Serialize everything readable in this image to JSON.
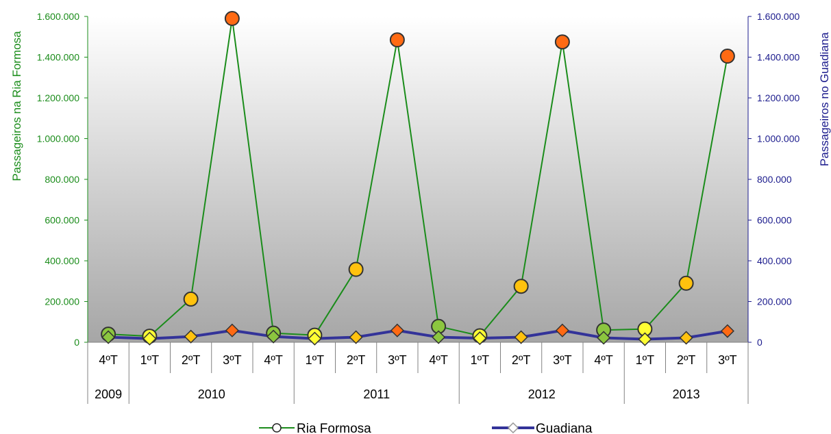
{
  "chart_data": {
    "type": "line",
    "title": "",
    "ylabel_left": "Passageiros na Ria Formosa",
    "ylabel_right": "Passageiros no Guadiana",
    "ylim_left": [
      0,
      1600000
    ],
    "ylim_right": [
      0,
      1600000
    ],
    "yticks": [
      "0",
      "200.000",
      "400.000",
      "600.000",
      "800.000",
      "1.000.000",
      "1.200.000",
      "1.400.000",
      "1.600.000"
    ],
    "categories": [
      "4ºT",
      "1ºT",
      "2ºT",
      "3ºT",
      "4ºT",
      "1ºT",
      "2ºT",
      "3ºT",
      "4ºT",
      "1ºT",
      "2ºT",
      "3ºT",
      "4ºT",
      "1ºT",
      "2ºT",
      "3ºT"
    ],
    "years": [
      {
        "label": "2009",
        "count": 1
      },
      {
        "label": "2010",
        "count": 4
      },
      {
        "label": "2011",
        "count": 4
      },
      {
        "label": "2012",
        "count": 4
      },
      {
        "label": "2013",
        "count": 3
      }
    ],
    "series": [
      {
        "name": "Ria Formosa",
        "axis": "left",
        "line_color": "#1a8c1a",
        "values": [
          40000,
          30000,
          212000,
          1590000,
          45000,
          35000,
          358000,
          1485000,
          78000,
          32000,
          275000,
          1475000,
          60000,
          65000,
          290000,
          1405000
        ]
      },
      {
        "name": "Guadiana",
        "axis": "right",
        "line_color": "#333399",
        "values": [
          25000,
          18000,
          28000,
          58000,
          28000,
          18000,
          25000,
          58000,
          25000,
          20000,
          25000,
          58000,
          22000,
          15000,
          22000,
          55000
        ]
      }
    ],
    "colors": {
      "left_axis": "#1a8c1a",
      "right_axis": "#1a1a8c",
      "marker_high": "#ff6a13",
      "marker_mid": "#ffc20e",
      "marker_low": "#ffff33",
      "marker_q4": "#8cc63f"
    },
    "grid": false,
    "legend_position": "bottom"
  }
}
